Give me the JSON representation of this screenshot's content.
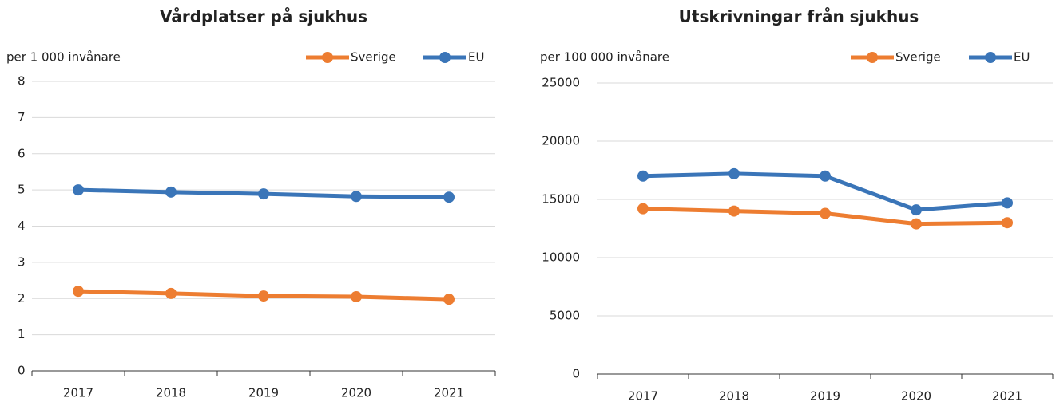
{
  "chart_data": [
    {
      "type": "line",
      "title": "Vårdplatser på sjukhus",
      "ylabel": "per 1 000 invånare",
      "categories": [
        "2017",
        "2018",
        "2019",
        "2020",
        "2021"
      ],
      "series": [
        {
          "name": "Sverige",
          "color": "#ed7d31",
          "values": [
            2.2,
            2.14,
            2.07,
            2.05,
            1.98
          ]
        },
        {
          "name": "EU",
          "color": "#3a75b8",
          "values": [
            5.0,
            4.94,
            4.89,
            4.82,
            4.8
          ]
        }
      ],
      "ylim": [
        0,
        8
      ],
      "yticks": [
        0,
        1,
        2,
        3,
        4,
        5,
        6,
        7,
        8
      ],
      "grid": true,
      "legend": "top-right"
    },
    {
      "type": "line",
      "title": "Utskrivningar från sjukhus",
      "ylabel": "per 100 000 invånare",
      "categories": [
        "2017",
        "2018",
        "2019",
        "2020",
        "2021"
      ],
      "series": [
        {
          "name": "Sverige",
          "color": "#ed7d31",
          "values": [
            14200,
            14000,
            13800,
            12900,
            13000
          ]
        },
        {
          "name": "EU",
          "color": "#3a75b8",
          "values": [
            17000,
            17200,
            17000,
            14100,
            14700
          ]
        }
      ],
      "ylim": [
        0,
        25000
      ],
      "yticks": [
        0,
        5000,
        10000,
        15000,
        20000,
        25000
      ],
      "grid": true,
      "legend": "top-right"
    }
  ]
}
